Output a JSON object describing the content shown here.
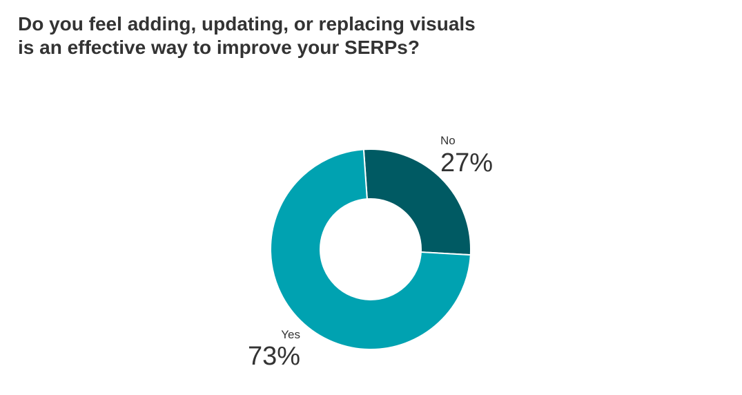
{
  "chart_data": {
    "type": "pie",
    "variant": "donut",
    "title_lines": [
      "Do you feel adding, updating, or replacing visuals",
      "is an effective way to improve your SERPs?"
    ],
    "slices": [
      {
        "label": "No",
        "value": 27,
        "display": "27%",
        "color": "#005a63"
      },
      {
        "label": "Yes",
        "value": 73,
        "display": "73%",
        "color": "#00a2b1"
      }
    ],
    "unit": "%",
    "legend": "none"
  }
}
